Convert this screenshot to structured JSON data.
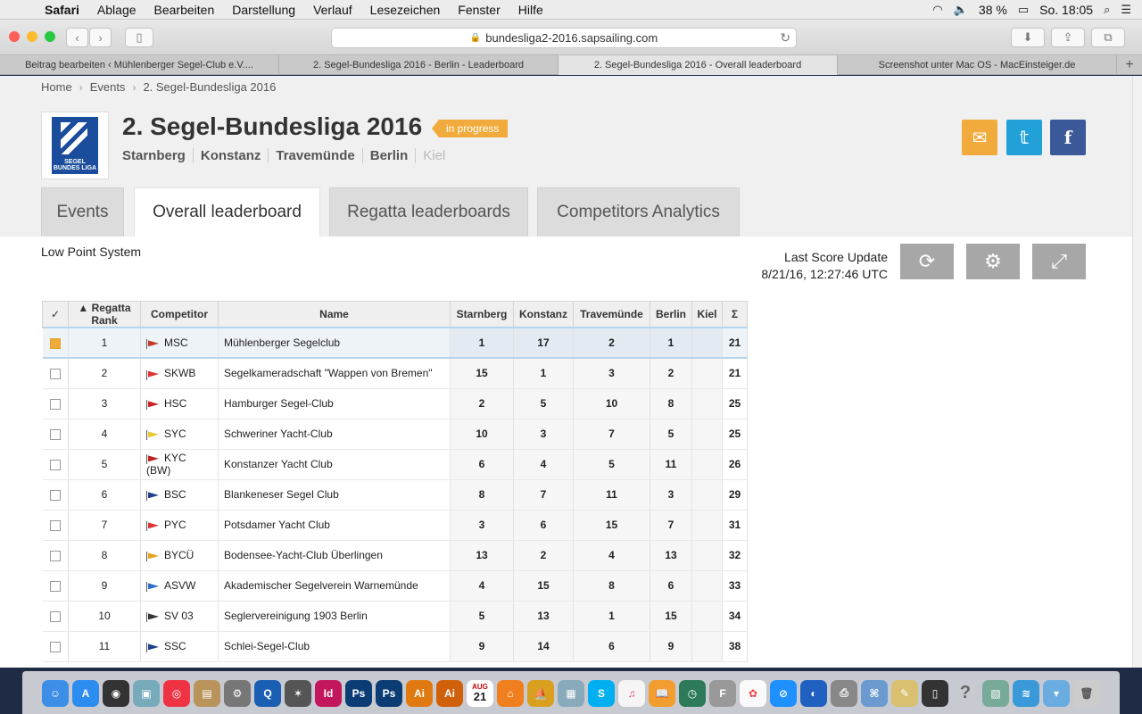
{
  "menubar": {
    "app": "Safari",
    "items": [
      "Ablage",
      "Bearbeiten",
      "Darstellung",
      "Verlauf",
      "Lesezeichen",
      "Fenster",
      "Hilfe"
    ],
    "battery": "38 %",
    "clock": "So. 18:05"
  },
  "browser": {
    "url": "bundesliga2-2016.sapsailing.com",
    "tabs": [
      {
        "label": "Beitrag bearbeiten ‹ Mühlenberger Segel-Club e.V...."
      },
      {
        "label": "2. Segel-Bundesliga 2016 - Berlin - Leaderboard"
      },
      {
        "label": "2. Segel-Bundesliga 2016 - Overall leaderboard"
      },
      {
        "label": "Screenshot unter Mac OS - MacEinsteiger.de"
      }
    ]
  },
  "breadcrumb": [
    "Home",
    "Events",
    "2. Segel-Bundesliga 2016"
  ],
  "event": {
    "title": "2. Segel-Bundesliga 2016",
    "status": "in progress",
    "venues": [
      "Starnberg",
      "Konstanz",
      "Travemünde",
      "Berlin",
      "Kiel"
    ],
    "logo_text": "SEGEL BUNDES LIGA"
  },
  "page_tabs": [
    "Events",
    "Overall leaderboard",
    "Regatta leaderboards",
    "Competitors Analytics"
  ],
  "leaderboard": {
    "scoring": "Low Point System",
    "last_update_label": "Last Score Update",
    "last_update_time": "8/21/16, 12:27:46 UTC",
    "columns": [
      "✓",
      "Regatta Rank",
      "Competitor",
      "Name",
      "Starnberg",
      "Konstanz",
      "Travemünde",
      "Berlin",
      "Kiel",
      "Σ"
    ],
    "rows": [
      {
        "rank": "1",
        "code": "MSC",
        "name": "Mühlenberger Segelclub",
        "scores": [
          "1",
          "17",
          "2",
          "1",
          ""
        ],
        "total": "21",
        "flag": "#c0392b"
      },
      {
        "rank": "2",
        "code": "SKWB",
        "name": "Segelkameradschaft \"Wappen von Bremen\"",
        "scores": [
          "15",
          "1",
          "3",
          "2",
          ""
        ],
        "total": "21",
        "flag": "#d33"
      },
      {
        "rank": "3",
        "code": "HSC",
        "name": "Hamburger Segel-Club",
        "scores": [
          "2",
          "5",
          "10",
          "8",
          ""
        ],
        "total": "25",
        "flag": "#c22"
      },
      {
        "rank": "4",
        "code": "SYC",
        "name": "Schweriner Yacht-Club",
        "scores": [
          "10",
          "3",
          "7",
          "5",
          ""
        ],
        "total": "25",
        "flag": "#e8c83a"
      },
      {
        "rank": "5",
        "code": "KYC (BW)",
        "name": "Konstanzer Yacht Club",
        "scores": [
          "6",
          "4",
          "5",
          "11",
          ""
        ],
        "total": "26",
        "flag": "#b22"
      },
      {
        "rank": "6",
        "code": "BSC",
        "name": "Blankeneser Segel Club",
        "scores": [
          "8",
          "7",
          "11",
          "3",
          ""
        ],
        "total": "29",
        "flag": "#1f3f8c"
      },
      {
        "rank": "7",
        "code": "PYC",
        "name": "Potsdamer Yacht Club",
        "scores": [
          "3",
          "6",
          "15",
          "7",
          ""
        ],
        "total": "31",
        "flag": "#d33"
      },
      {
        "rank": "8",
        "code": "BYCÜ",
        "name": "Bodensee-Yacht-Club Überlingen",
        "scores": [
          "13",
          "2",
          "4",
          "13",
          ""
        ],
        "total": "32",
        "flag": "#e6a21f"
      },
      {
        "rank": "9",
        "code": "ASVW",
        "name": "Akademischer Segelverein Warnemünde",
        "scores": [
          "4",
          "15",
          "8",
          "6",
          ""
        ],
        "total": "33",
        "flag": "#2a6fc7"
      },
      {
        "rank": "10",
        "code": "SV 03",
        "name": "Seglervereinigung 1903 Berlin",
        "scores": [
          "5",
          "13",
          "1",
          "15",
          ""
        ],
        "total": "34",
        "flag": "#333"
      },
      {
        "rank": "11",
        "code": "SSC",
        "name": "Schlei-Segel-Club",
        "scores": [
          "9",
          "14",
          "6",
          "9",
          ""
        ],
        "total": "38",
        "flag": "#1f3f8c"
      }
    ]
  },
  "dock": {
    "calendar_month": "AUG",
    "calendar_day": "21"
  }
}
